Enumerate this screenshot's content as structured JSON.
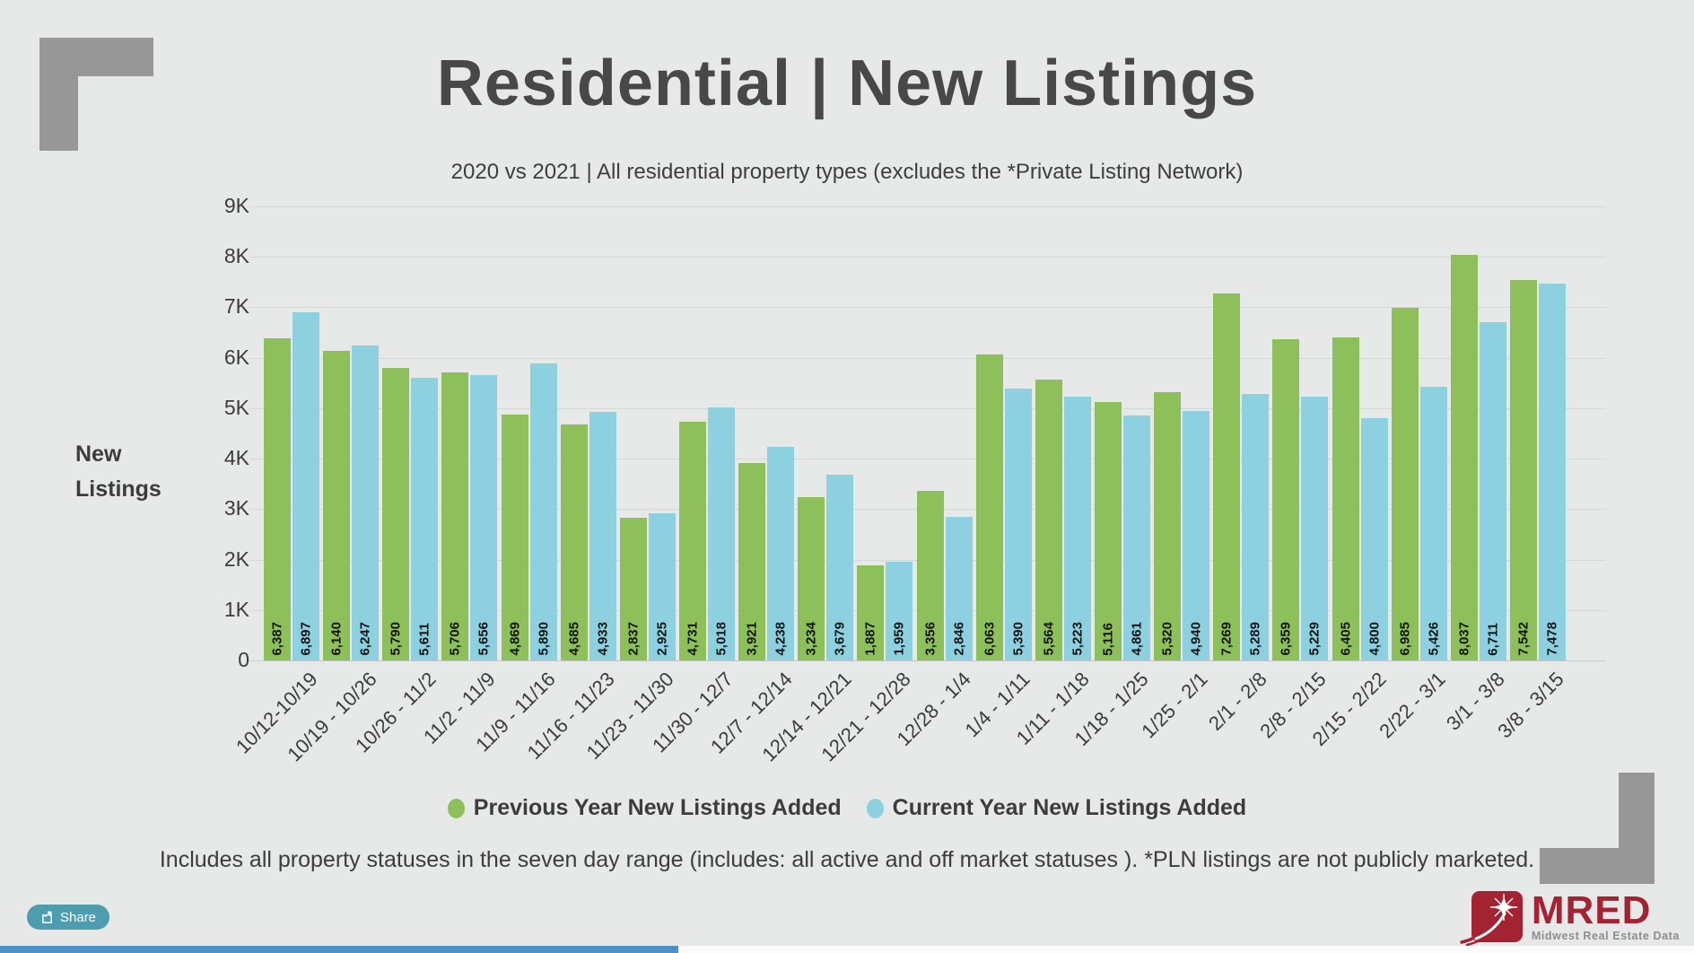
{
  "page": {
    "title": "Residential | New Listings",
    "subtitle": "2020 vs 2021 | All residential property types (excludes the *Private Listing Network)",
    "footnote": "Includes all property statuses in the seven day range (includes:  all active and off market statuses ).  *PLN listings are not publicly marketed.",
    "share_label": "Share"
  },
  "logo": {
    "name": "MRED",
    "tagline": "Midwest Real Estate Data"
  },
  "icons": {
    "share_button": "share-from-square",
    "logo_mark": "starburst-swoosh"
  },
  "colors": {
    "background": "#e7e8e8",
    "title_text": "#484848",
    "body_text": "#3c3c3c",
    "gridline": "#d6d7d7",
    "previous_year_green": "#8dc05a",
    "current_year_blue": "#8dd0e0",
    "share_button_teal": "#4c9dad",
    "logo_red": "#a32332",
    "corner_gray": "#979797",
    "bottom_bar_blue": "#4d91c8"
  },
  "chart_data": {
    "type": "bar",
    "title": "Residential | New Listings",
    "subtitle": "2020 vs 2021 | All residential property types (excludes the *Private Listing Network)",
    "xlabel": "",
    "ylabel": "New Listings",
    "ylim": [
      0,
      9000
    ],
    "y_ticks": [
      "0",
      "1K",
      "2K",
      "3K",
      "4K",
      "5K",
      "6K",
      "7K",
      "8K",
      "9K"
    ],
    "grid": true,
    "legend_position": "bottom",
    "categories": [
      "10/12-10/19",
      "10/19 - 10/26",
      "10/26 - 11/2",
      "11/2 - 11/9",
      "11/9 - 11/16",
      "11/16 - 11/23",
      "11/23 - 11/30",
      "11/30 - 12/7",
      "12/7 - 12/14",
      "12/14 - 12/21",
      "12/21 - 12/28",
      "12/28 - 1/4",
      "1/4 - 1/11",
      "1/11 - 1/18",
      "1/18 - 1/25",
      "1/25 - 2/1",
      "2/1 - 2/8",
      "2/8 - 2/15",
      "2/15 - 2/22",
      "2/22 - 3/1",
      "3/1 - 3/8",
      "3/8 - 3/15"
    ],
    "series": [
      {
        "name": "Previous Year New Listings Added",
        "color": "#8dc05a",
        "values": [
          6387,
          6140,
          5790,
          5706,
          4869,
          4685,
          2837,
          4731,
          3921,
          3234,
          1887,
          3356,
          6063,
          5564,
          5116,
          5320,
          7269,
          6359,
          6405,
          6985,
          8037,
          7542
        ]
      },
      {
        "name": "Current Year New Listings Added",
        "color": "#8dd0e0",
        "values": [
          6897,
          6247,
          5611,
          5656,
          5890,
          4933,
          2925,
          5018,
          4238,
          3679,
          1959,
          2846,
          5390,
          5223,
          4861,
          4940,
          5289,
          5229,
          4800,
          5426,
          6711,
          7478
        ]
      }
    ]
  }
}
